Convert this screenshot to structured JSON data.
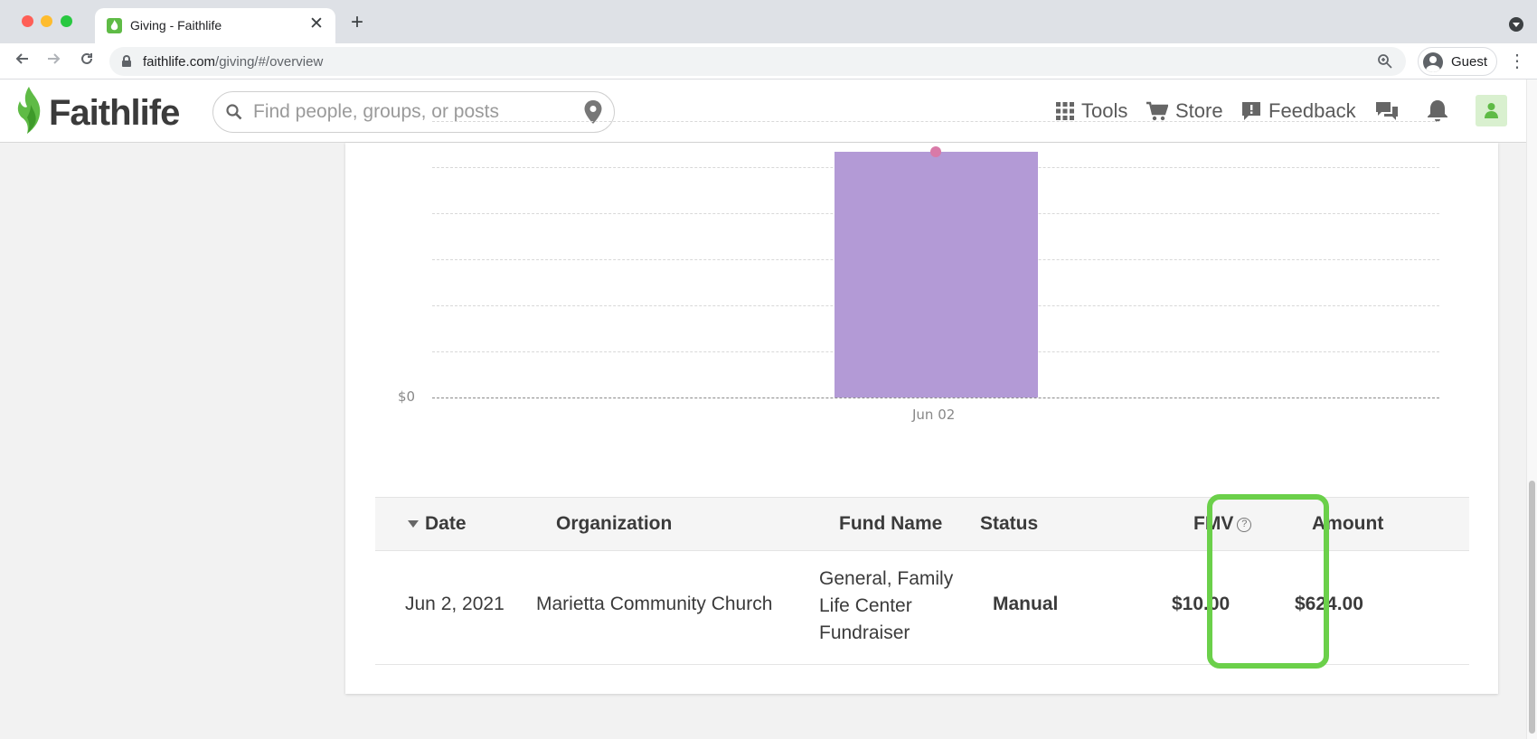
{
  "browser": {
    "tab_title": "Giving - Faithlife",
    "tab_close": "✕",
    "new_tab": "+",
    "url_host": "faithlife.com",
    "url_path": "/giving/#/overview",
    "profile_label": "Guest"
  },
  "header": {
    "logo_text": "Faithlife",
    "search_placeholder": "Find people, groups, or posts",
    "nav": {
      "tools": "Tools",
      "store": "Store",
      "feedback": "Feedback"
    }
  },
  "chart_data": {
    "type": "bar",
    "categories": [
      "Jun 02"
    ],
    "values": [
      624
    ],
    "y_tick_labels": [
      "$0"
    ],
    "grid": true,
    "bar_color": "#b39ad6",
    "marker_color": "#d97aa8"
  },
  "table": {
    "headers": {
      "date": "Date",
      "organization": "Organization",
      "fund_name": "Fund Name",
      "status": "Status",
      "fmv": "FMV",
      "amount": "Amount"
    },
    "help_icon": "?",
    "rows": [
      {
        "date": "Jun 2, 2021",
        "organization": "Marietta Community Church",
        "fund_name": [
          "General, Family",
          "Life Center",
          "Fundraiser"
        ],
        "status": "Manual",
        "fmv": "$10.00",
        "amount": "$624.00"
      }
    ]
  },
  "colors": {
    "brand_green": "#5fbb46",
    "highlight": "#6bd04a"
  }
}
